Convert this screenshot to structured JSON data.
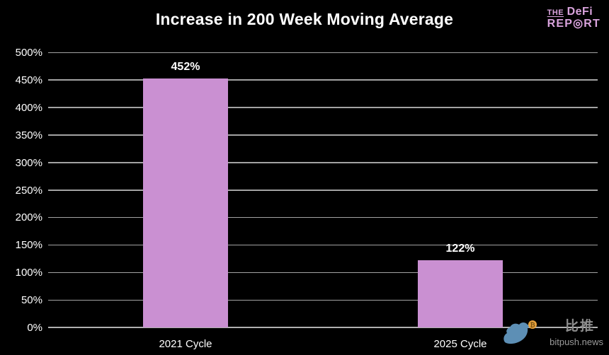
{
  "header": {
    "title": "Increase in 200 Week Moving Average"
  },
  "logo": {
    "the": "THE",
    "defi": "DeFi",
    "report": "REP◎RT",
    "color": "#d9a3dd"
  },
  "watermark": {
    "bird_icon": "bird-with-bitcoin-icon",
    "cn_text": "比推",
    "site_text": "bitpush.news",
    "bird_color": "#5d8fb5",
    "coin_color": "#e8a33d"
  },
  "chart_data": {
    "type": "bar",
    "title": "Increase in 200 Week Moving Average",
    "categories": [
      "2021 Cycle",
      "2025 Cycle"
    ],
    "values": [
      452,
      122
    ],
    "value_labels": [
      "452%",
      "122%"
    ],
    "xlabel": "",
    "ylabel": "",
    "ylim": [
      0,
      500
    ],
    "ytick_step": 50,
    "ytick_labels": [
      "0%",
      "50%",
      "100%",
      "150%",
      "200%",
      "250%",
      "300%",
      "350%",
      "400%",
      "450%",
      "500%"
    ],
    "grid": true,
    "legend": false,
    "bar_color": "#ca90d2",
    "gridline_color": "#a3a3a3",
    "axis_line_color": "#b0b0b0",
    "background_color": "#000000",
    "text_color": "#ffffff"
  }
}
